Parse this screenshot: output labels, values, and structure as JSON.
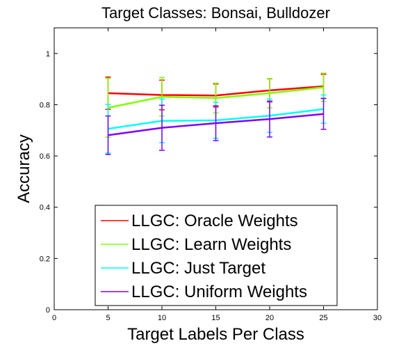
{
  "chart_data": {
    "type": "line",
    "title": "Target Classes: Bonsai, Bulldozer",
    "xlabel": "Target Labels Per Class",
    "ylabel": "Accuracy",
    "xlim": [
      0,
      30
    ],
    "ylim": [
      0,
      1.1
    ],
    "xticks": [
      0,
      5,
      10,
      15,
      20,
      25,
      30
    ],
    "yticks": [
      0,
      0.2,
      0.4,
      0.6,
      0.8,
      1
    ],
    "x": [
      5,
      10,
      15,
      20,
      25
    ],
    "legend_position": "bottom-center",
    "series": [
      {
        "name": "LLGC: Oracle Weights",
        "color": "#ff0000",
        "values": [
          0.845,
          0.838,
          0.836,
          0.856,
          0.872
        ],
        "err": [
          0.063,
          0.058,
          0.045,
          0.045,
          0.047
        ]
      },
      {
        "name": "LLGC: Learn Weights",
        "color": "#80ff00",
        "values": [
          0.788,
          0.831,
          0.826,
          0.845,
          0.868
        ],
        "err": [
          0.115,
          0.075,
          0.058,
          0.057,
          0.055
        ]
      },
      {
        "name": "LLGC: Just Target",
        "color": "#00ffff",
        "values": [
          0.706,
          0.737,
          0.739,
          0.757,
          0.783
        ],
        "err": [
          0.095,
          0.085,
          0.07,
          0.065,
          0.055
        ]
      },
      {
        "name": "LLGC: Uniform Weights",
        "color": "#8000ff",
        "values": [
          0.681,
          0.71,
          0.728,
          0.744,
          0.764
        ],
        "err": [
          0.075,
          0.088,
          0.068,
          0.07,
          0.06
        ]
      }
    ]
  }
}
